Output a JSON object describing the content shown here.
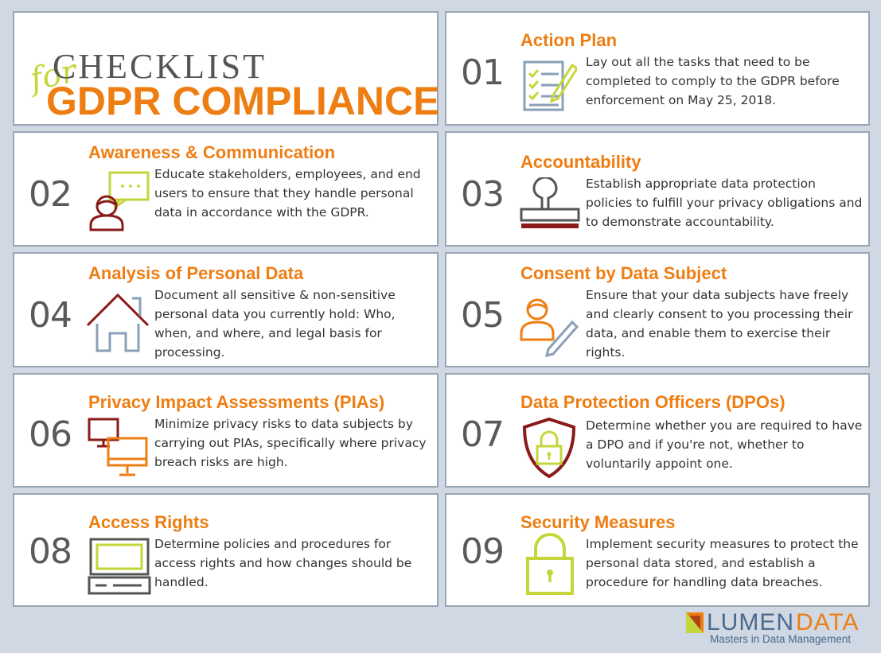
{
  "header": {
    "for_word": "for",
    "checklist_word": "CHECKLIST",
    "title": "GDPR COMPLIANCE"
  },
  "items": [
    {
      "num": "01",
      "title": "Action Plan",
      "text": "Lay out all the tasks that need to be completed to comply to the GDPR before enforcement on May 25, 2018.",
      "icon": "checklist-icon"
    },
    {
      "num": "02",
      "title": "Awareness & Communication",
      "text": "Educate stakeholders, employees, and end users to ensure that they handle personal data in accordance with the GDPR.",
      "icon": "person-speech-icon"
    },
    {
      "num": "03",
      "title": "Accountability",
      "text": "Establish appropriate data protection policies to fulfill your privacy obligations and to demonstrate accountability.",
      "icon": "stamp-icon"
    },
    {
      "num": "04",
      "title": "Analysis of Personal Data",
      "text": "Document all sensitive & non-sensitive personal data you currently hold:  Who, when, and where, and legal basis for processing.",
      "icon": "house-icon"
    },
    {
      "num": "05",
      "title": "Consent by Data Subject",
      "text": "Ensure that your data subjects have freely and clearly consent to you processing their data, and enable them to exercise their rights.",
      "icon": "person-pen-icon"
    },
    {
      "num": "06",
      "title": "Privacy Impact Assessments (PIAs)",
      "text": "Minimize privacy risks to data subjects by carrying out PIAs, specifically where privacy breach risks are high.",
      "icon": "monitors-icon"
    },
    {
      "num": "07",
      "title": "Data Protection Officers (DPOs)",
      "text": "Determine whether you are required to have a DPO and if you're not, whether to voluntarily appoint one.",
      "icon": "shield-lock-icon"
    },
    {
      "num": "08",
      "title": "Access Rights",
      "text": "Determine policies and procedures for access rights and how changes should be handled.",
      "icon": "terminal-icon"
    },
    {
      "num": "09",
      "title": "Security Measures",
      "text": "Implement security measures to protect the personal data stored, and establish a procedure for handling data breaches.",
      "icon": "padlock-icon"
    }
  ],
  "brand": {
    "name_part1": "LUMEN",
    "name_part2": "DATA",
    "tagline": "Masters in Data Management"
  },
  "colors": {
    "accent": "#ee7d12",
    "number": "#5a5a5a",
    "dark_red": "#8b1a1a",
    "lime": "#c5d63a",
    "steel": "#8aa0b8",
    "brand_blue": "#4a6a8e"
  }
}
